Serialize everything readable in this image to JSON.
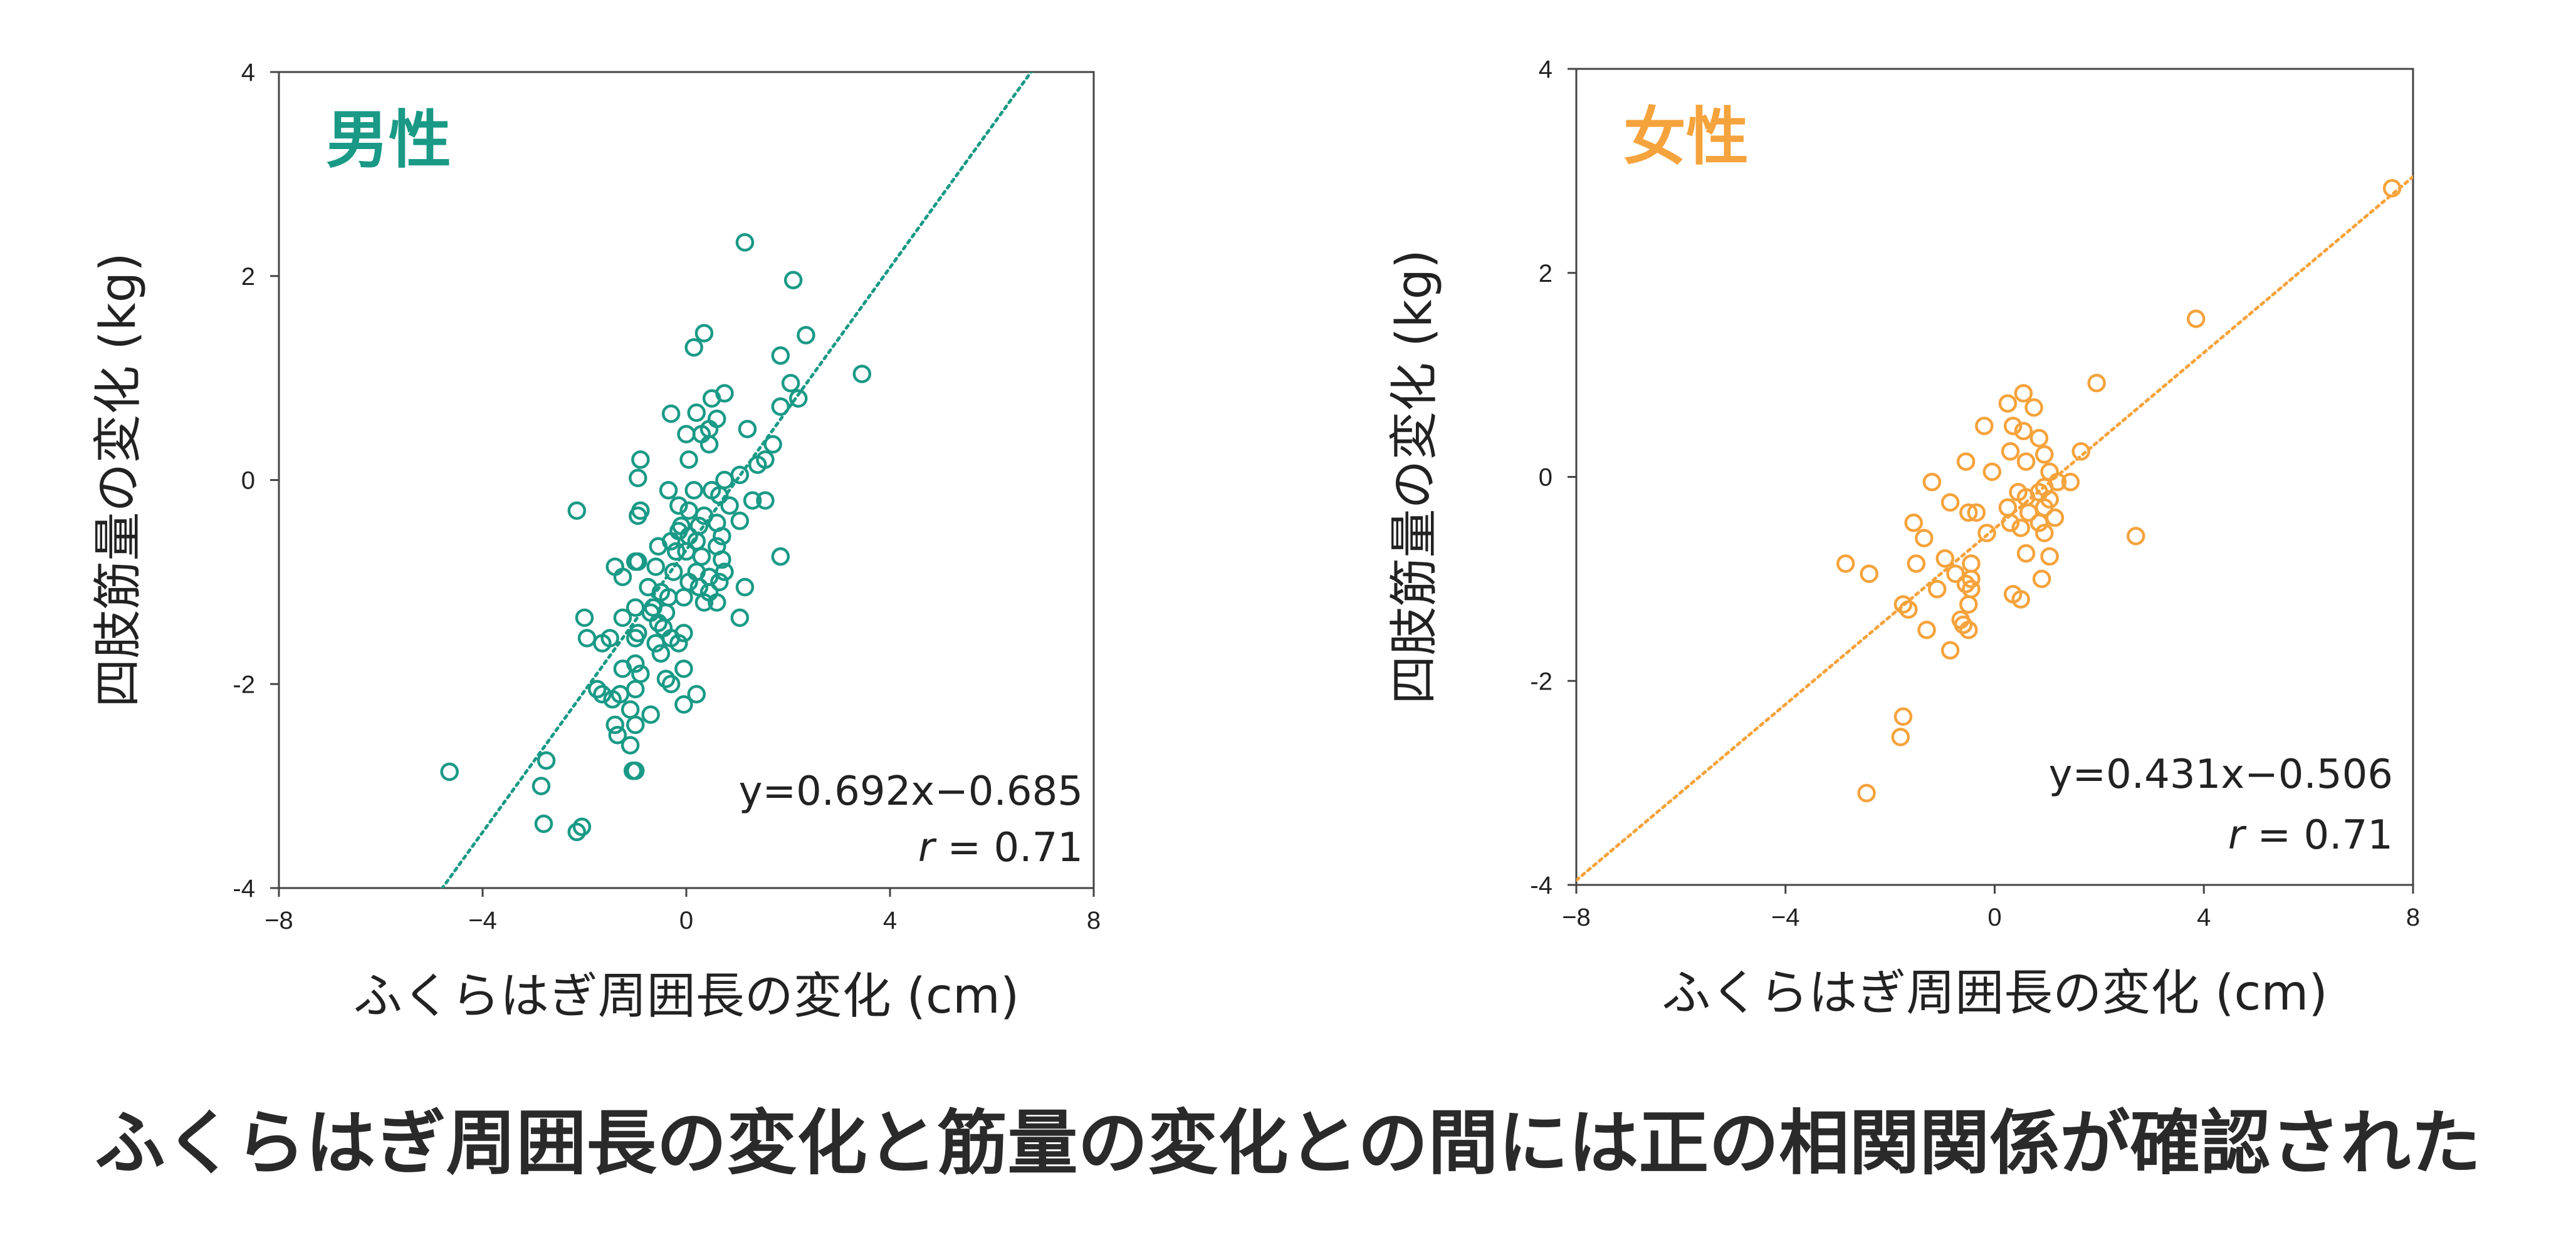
{
  "colors": {
    "male": "#1a9a86",
    "female": "#f5a33c",
    "text": "#222222"
  },
  "caption": "ふくらはぎ周囲長の変化と筋量の変化との間には正の相関関係が確認された",
  "chart_data": [
    {
      "type": "scatter",
      "title": "男性",
      "xlabel": "ふくらはぎ周囲長の変化 (cm)",
      "ylabel": "四肢筋量の変化 (kg)",
      "xlim": [
        -8,
        8
      ],
      "ylim": [
        -4,
        4
      ],
      "xticks": [
        -8,
        -4,
        0,
        4,
        8
      ],
      "yticks": [
        -4,
        -2,
        0,
        2,
        4
      ],
      "xtick_labels": [
        "−8",
        "−4",
        "0",
        "4",
        "8"
      ],
      "ytick_labels": [
        "-4",
        "-2",
        "0",
        "2",
        "4"
      ],
      "equation": "y=0.692x−0.685",
      "r_symbol": "r",
      "r_value": "= 0.71",
      "trend": {
        "slope": 0.692,
        "intercept": -0.685
      },
      "points": [
        [
          1.15,
          2.33
        ],
        [
          2.1,
          1.96
        ],
        [
          0.35,
          1.44
        ],
        [
          2.35,
          1.42
        ],
        [
          0.15,
          1.3
        ],
        [
          1.85,
          1.22
        ],
        [
          3.45,
          1.04
        ],
        [
          2.05,
          0.95
        ],
        [
          2.2,
          0.8
        ],
        [
          0.75,
          0.85
        ],
        [
          0.5,
          0.8
        ],
        [
          1.85,
          0.72
        ],
        [
          0.2,
          0.66
        ],
        [
          -0.3,
          0.65
        ],
        [
          0.6,
          0.6
        ],
        [
          1.2,
          0.5
        ],
        [
          0.45,
          0.5
        ],
        [
          0.0,
          0.45
        ],
        [
          0.3,
          0.45
        ],
        [
          1.7,
          0.35
        ],
        [
          0.45,
          0.35
        ],
        [
          -0.9,
          0.2
        ],
        [
          1.55,
          0.2
        ],
        [
          0.05,
          0.2
        ],
        [
          1.4,
          0.15
        ],
        [
          1.05,
          0.05
        ],
        [
          -0.95,
          0.02
        ],
        [
          0.75,
          0.0
        ],
        [
          -0.35,
          -0.1
        ],
        [
          0.15,
          -0.1
        ],
        [
          0.5,
          -0.1
        ],
        [
          0.65,
          -0.15
        ],
        [
          1.55,
          -0.2
        ],
        [
          1.3,
          -0.2
        ],
        [
          -0.15,
          -0.25
        ],
        [
          0.85,
          -0.25
        ],
        [
          0.05,
          -0.3
        ],
        [
          0.35,
          -0.35
        ],
        [
          -2.15,
          -0.3
        ],
        [
          -0.9,
          -0.3
        ],
        [
          -0.95,
          -0.35
        ],
        [
          1.05,
          -0.4
        ],
        [
          0.6,
          -0.42
        ],
        [
          0.25,
          -0.45
        ],
        [
          -0.1,
          -0.45
        ],
        [
          -0.15,
          -0.5
        ],
        [
          0.05,
          -0.55
        ],
        [
          0.7,
          -0.55
        ],
        [
          -0.3,
          -0.6
        ],
        [
          0.2,
          -0.6
        ],
        [
          0.6,
          -0.65
        ],
        [
          -0.55,
          -0.65
        ],
        [
          -0.2,
          -0.7
        ],
        [
          0.0,
          -0.7
        ],
        [
          0.3,
          -0.75
        ],
        [
          1.85,
          -0.75
        ],
        [
          0.7,
          -0.78
        ],
        [
          -0.95,
          -0.8
        ],
        [
          -1.0,
          -0.8
        ],
        [
          -1.4,
          -0.85
        ],
        [
          -0.6,
          -0.85
        ],
        [
          -0.25,
          -0.9
        ],
        [
          0.2,
          -0.9
        ],
        [
          0.75,
          -0.9
        ],
        [
          0.45,
          -0.95
        ],
        [
          -1.25,
          -0.95
        ],
        [
          0.65,
          -1.0
        ],
        [
          0.05,
          -1.0
        ],
        [
          0.25,
          -1.05
        ],
        [
          -0.75,
          -1.05
        ],
        [
          1.15,
          -1.05
        ],
        [
          -0.5,
          -1.1
        ],
        [
          0.45,
          -1.1
        ],
        [
          -0.35,
          -1.15
        ],
        [
          -0.05,
          -1.15
        ],
        [
          0.35,
          -1.2
        ],
        [
          0.6,
          -1.2
        ],
        [
          -0.65,
          -1.25
        ],
        [
          -1.0,
          -1.25
        ],
        [
          1.05,
          -1.35
        ],
        [
          -0.4,
          -1.3
        ],
        [
          -0.7,
          -1.3
        ],
        [
          -1.25,
          -1.35
        ],
        [
          -0.55,
          -1.4
        ],
        [
          -0.45,
          -1.45
        ],
        [
          -0.95,
          -1.5
        ],
        [
          -0.05,
          -1.5
        ],
        [
          -1.0,
          -1.55
        ],
        [
          -0.3,
          -1.55
        ],
        [
          -1.95,
          -1.55
        ],
        [
          -1.65,
          -1.6
        ],
        [
          -1.5,
          -1.55
        ],
        [
          -0.15,
          -1.6
        ],
        [
          -0.6,
          -1.6
        ],
        [
          -2.0,
          -1.35
        ],
        [
          -0.5,
          -1.7
        ],
        [
          -1.0,
          -1.8
        ],
        [
          -1.25,
          -1.85
        ],
        [
          -0.05,
          -1.85
        ],
        [
          -0.9,
          -1.9
        ],
        [
          -0.4,
          -1.95
        ],
        [
          -0.3,
          -2.0
        ],
        [
          -1.0,
          -2.05
        ],
        [
          -1.75,
          -2.05
        ],
        [
          -1.65,
          -2.1
        ],
        [
          -1.3,
          -2.1
        ],
        [
          0.2,
          -2.1
        ],
        [
          -1.45,
          -2.15
        ],
        [
          -0.05,
          -2.2
        ],
        [
          -1.1,
          -2.25
        ],
        [
          -0.7,
          -2.3
        ],
        [
          -1.0,
          -2.4
        ],
        [
          -1.4,
          -2.4
        ],
        [
          -1.35,
          -2.5
        ],
        [
          -1.1,
          -2.6
        ],
        [
          -2.75,
          -2.75
        ],
        [
          -1.0,
          -2.85
        ],
        [
          -1.05,
          -2.85
        ],
        [
          -4.65,
          -2.86
        ],
        [
          -2.85,
          -3.0
        ],
        [
          -2.8,
          -3.37
        ],
        [
          -2.05,
          -3.4
        ],
        [
          -2.15,
          -3.45
        ]
      ]
    },
    {
      "type": "scatter",
      "title": "女性",
      "xlabel": "ふくらはぎ周囲長の変化 (cm)",
      "ylabel": "四肢筋量の変化 (kg)",
      "xlim": [
        -8,
        8
      ],
      "ylim": [
        -4,
        4
      ],
      "xticks": [
        -8,
        -4,
        0,
        4,
        8
      ],
      "yticks": [
        -4,
        -2,
        0,
        2,
        4
      ],
      "xtick_labels": [
        "−8",
        "−4",
        "0",
        "4",
        "8"
      ],
      "ytick_labels": [
        "-4",
        "-2",
        "0",
        "2",
        "4"
      ],
      "equation": "y=0.431x−0.506",
      "r_symbol": "r",
      "r_value": "= 0.71",
      "trend": {
        "slope": 0.431,
        "intercept": -0.506
      },
      "points": [
        [
          7.6,
          2.83
        ],
        [
          3.85,
          1.55
        ],
        [
          1.95,
          0.92
        ],
        [
          0.55,
          0.82
        ],
        [
          0.25,
          0.72
        ],
        [
          0.75,
          0.68
        ],
        [
          0.35,
          0.5
        ],
        [
          0.55,
          0.45
        ],
        [
          -0.2,
          0.5
        ],
        [
          0.85,
          0.38
        ],
        [
          1.65,
          0.25
        ],
        [
          0.3,
          0.25
        ],
        [
          0.95,
          0.22
        ],
        [
          0.6,
          0.15
        ],
        [
          -0.55,
          0.15
        ],
        [
          1.05,
          0.05
        ],
        [
          -0.05,
          0.05
        ],
        [
          1.45,
          -0.05
        ],
        [
          1.2,
          -0.05
        ],
        [
          0.95,
          -0.1
        ],
        [
          -1.2,
          -0.05
        ],
        [
          0.45,
          -0.15
        ],
        [
          0.85,
          -0.15
        ],
        [
          0.6,
          -0.2
        ],
        [
          1.05,
          -0.22
        ],
        [
          -0.85,
          -0.25
        ],
        [
          0.25,
          -0.3
        ],
        [
          0.95,
          -0.3
        ],
        [
          -0.35,
          -0.35
        ],
        [
          0.65,
          -0.35
        ],
        [
          -0.5,
          -0.35
        ],
        [
          1.15,
          -0.4
        ],
        [
          0.85,
          -0.45
        ],
        [
          0.3,
          -0.45
        ],
        [
          -1.55,
          -0.45
        ],
        [
          0.5,
          -0.5
        ],
        [
          -0.15,
          -0.55
        ],
        [
          0.95,
          -0.55
        ],
        [
          2.7,
          -0.58
        ],
        [
          -1.35,
          -0.6
        ],
        [
          0.6,
          -0.75
        ],
        [
          -0.95,
          -0.8
        ],
        [
          1.05,
          -0.78
        ],
        [
          -2.85,
          -0.85
        ],
        [
          -1.5,
          -0.85
        ],
        [
          -0.45,
          -0.85
        ],
        [
          -0.75,
          -0.95
        ],
        [
          0.9,
          -1.0
        ],
        [
          -0.45,
          -1.0
        ],
        [
          -2.4,
          -0.95
        ],
        [
          -0.55,
          -1.05
        ],
        [
          -0.45,
          -1.1
        ],
        [
          -1.1,
          -1.1
        ],
        [
          0.35,
          -1.15
        ],
        [
          0.5,
          -1.2
        ],
        [
          -0.5,
          -1.25
        ],
        [
          -1.75,
          -1.25
        ],
        [
          -1.65,
          -1.3
        ],
        [
          -0.65,
          -1.4
        ],
        [
          -0.6,
          -1.45
        ],
        [
          -0.5,
          -1.5
        ],
        [
          -1.3,
          -1.5
        ],
        [
          -0.85,
          -1.7
        ],
        [
          -1.75,
          -2.35
        ],
        [
          -1.8,
          -2.55
        ],
        [
          -2.45,
          -3.1
        ]
      ]
    }
  ]
}
